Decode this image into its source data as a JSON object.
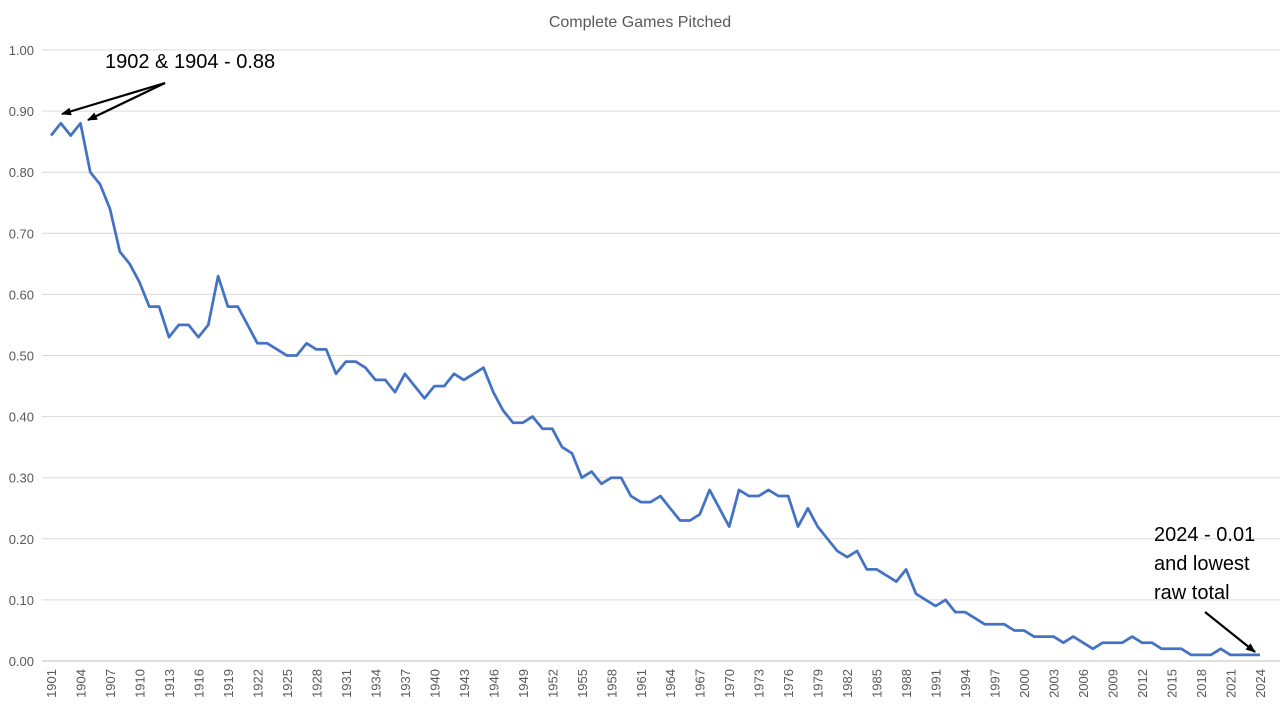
{
  "chart_data": {
    "type": "line",
    "title": "Complete Games Pitched",
    "xlabel": "",
    "ylabel": "",
    "ylim": [
      0,
      1.0
    ],
    "yticks": [
      "0.00",
      "0.10",
      "0.20",
      "0.30",
      "0.40",
      "0.50",
      "0.60",
      "0.70",
      "0.80",
      "0.90",
      "1.00"
    ],
    "xlim": [
      1901,
      2024
    ],
    "xtick_step": 3,
    "grid": true,
    "legend": "none",
    "line_color": "#4472C4",
    "x_start": 1901,
    "values": [
      0.86,
      0.88,
      0.86,
      0.88,
      0.8,
      0.78,
      0.74,
      0.67,
      0.65,
      0.62,
      0.58,
      0.58,
      0.53,
      0.55,
      0.55,
      0.53,
      0.55,
      0.63,
      0.58,
      0.58,
      0.55,
      0.52,
      0.52,
      0.51,
      0.5,
      0.5,
      0.52,
      0.51,
      0.51,
      0.47,
      0.49,
      0.49,
      0.48,
      0.46,
      0.46,
      0.44,
      0.47,
      0.45,
      0.43,
      0.45,
      0.45,
      0.47,
      0.46,
      0.47,
      0.48,
      0.44,
      0.41,
      0.39,
      0.39,
      0.4,
      0.38,
      0.38,
      0.35,
      0.34,
      0.3,
      0.31,
      0.29,
      0.3,
      0.3,
      0.27,
      0.26,
      0.26,
      0.27,
      0.25,
      0.23,
      0.23,
      0.24,
      0.28,
      0.25,
      0.22,
      0.28,
      0.27,
      0.27,
      0.28,
      0.27,
      0.27,
      0.22,
      0.25,
      0.22,
      0.2,
      0.18,
      0.17,
      0.18,
      0.15,
      0.15,
      0.14,
      0.13,
      0.15,
      0.11,
      0.1,
      0.09,
      0.1,
      0.08,
      0.08,
      0.07,
      0.06,
      0.06,
      0.06,
      0.05,
      0.05,
      0.04,
      0.04,
      0.04,
      0.03,
      0.04,
      0.03,
      0.02,
      0.03,
      0.03,
      0.03,
      0.04,
      0.03,
      0.03,
      0.02,
      0.02,
      0.02,
      0.01,
      0.01,
      0.01,
      0.02,
      0.01,
      0.01,
      0.01,
      0.01
    ],
    "annotations": [
      {
        "lines": [
          "1902 & 1904 - 0.88"
        ],
        "points_to": [
          1902,
          1904
        ]
      },
      {
        "lines": [
          "2024 - 0.01",
          "and lowest",
          "raw total"
        ],
        "points_to": [
          2024
        ]
      }
    ]
  }
}
